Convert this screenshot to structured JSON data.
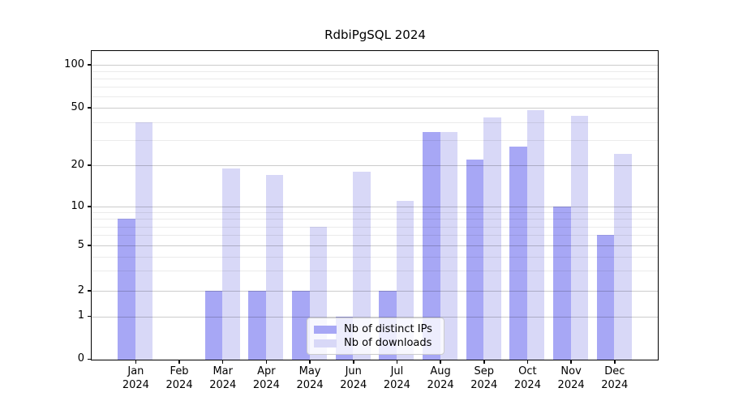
{
  "chart_data": {
    "type": "bar",
    "title": "RdbiPgSQL 2024",
    "categories": [
      "Jan 2024",
      "Feb 2024",
      "Mar 2024",
      "Apr 2024",
      "May 2024",
      "Jun 2024",
      "Jul 2024",
      "Aug 2024",
      "Sep 2024",
      "Oct 2024",
      "Nov 2024",
      "Dec 2024"
    ],
    "series": [
      {
        "name": "Nb of distinct IPs",
        "color": "#a7a7f5",
        "values": [
          8,
          0,
          2,
          2,
          2,
          1,
          2,
          34,
          22,
          27,
          10,
          6
        ]
      },
      {
        "name": "Nb of downloads",
        "color": "#d8d8f7",
        "values": [
          40,
          0,
          19,
          17,
          7,
          18,
          11,
          34,
          43,
          48,
          44,
          24
        ]
      }
    ],
    "xlabel": "",
    "ylabel": "",
    "yscale": "log-like",
    "ylim": [
      0,
      120
    ],
    "y_ticks": [
      0,
      1,
      2,
      5,
      10,
      20,
      50,
      100
    ],
    "y_minor_gridlines": [
      3,
      4,
      6,
      7,
      8,
      9,
      30,
      40,
      60,
      70,
      80,
      90
    ],
    "grid": true,
    "legend_position": "lower center"
  }
}
